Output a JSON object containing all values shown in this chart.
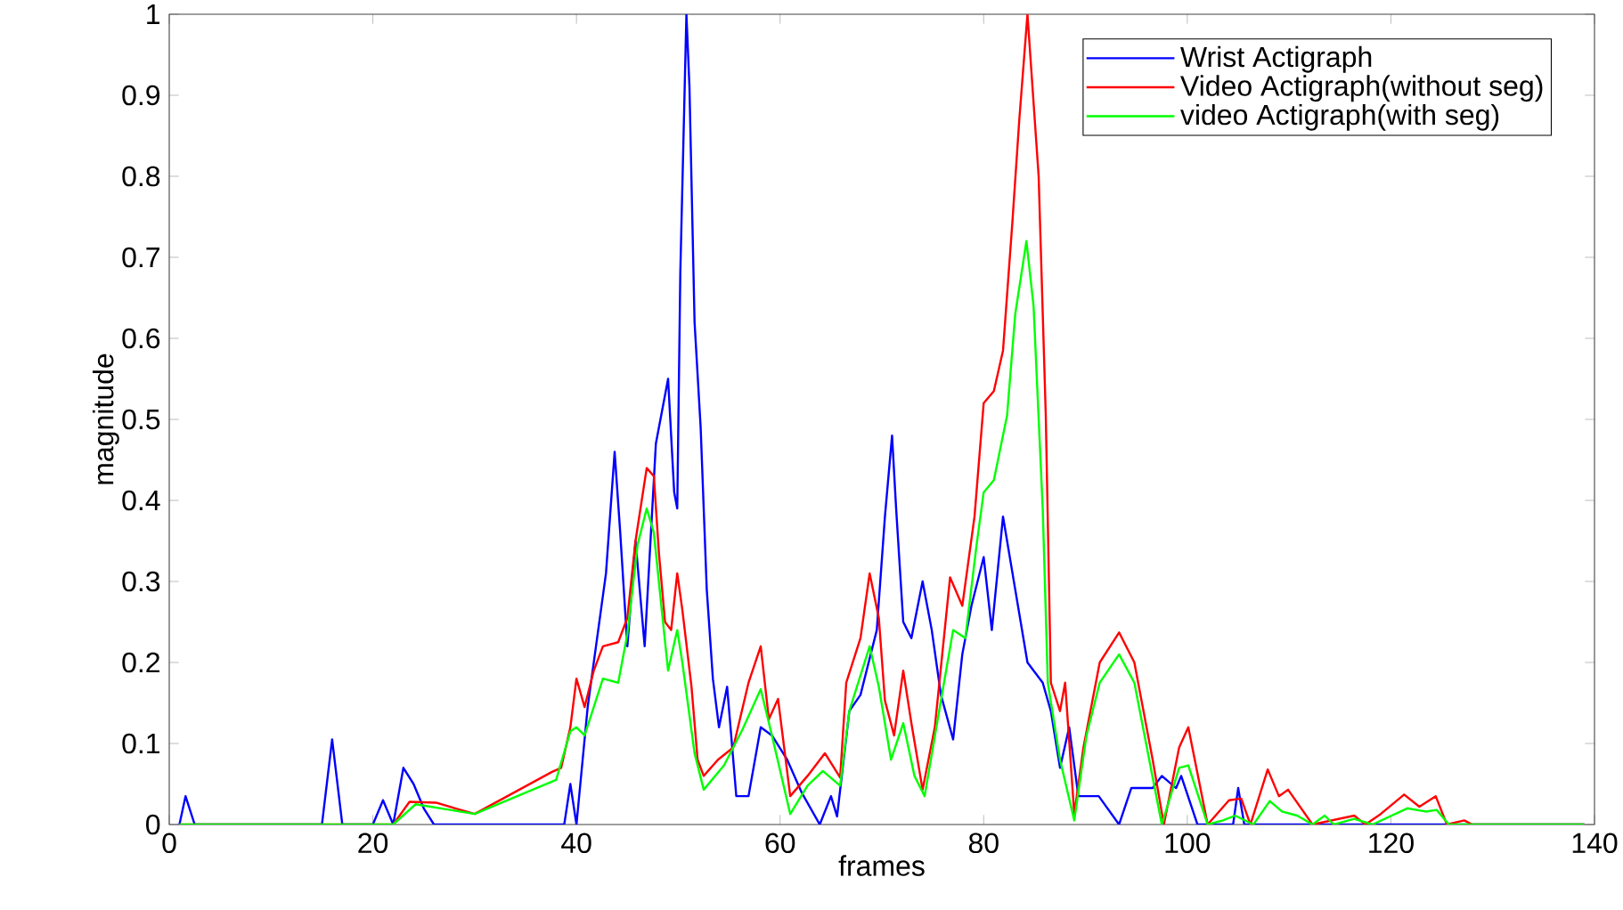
{
  "chart_data": {
    "type": "line",
    "xlabel": "frames",
    "ylabel": "magnitude",
    "xlim": [
      0,
      140
    ],
    "xticks": [
      0,
      20,
      40,
      60,
      80,
      100,
      120,
      140
    ],
    "ylim": [
      0,
      1
    ],
    "yticks": [
      0,
      0.1,
      0.2,
      0.3,
      0.4,
      0.5,
      0.6,
      0.7,
      0.8,
      0.9,
      1
    ],
    "legend": "top right",
    "marker": "none",
    "line_style": "solid",
    "series": [
      {
        "name": "Wrist Actigraph",
        "color": "#0000ff",
        "x": [
          1,
          1.6,
          2.5,
          15,
          16,
          17,
          20,
          21,
          22,
          23,
          24,
          25,
          26,
          38.8,
          39.4,
          40,
          41.1,
          42.9,
          43.75,
          44.3,
          45,
          45.8,
          46.7,
          47.8,
          49,
          49.6,
          49.9,
          50.2,
          50.8,
          51.1,
          51.6,
          52.2,
          52.8,
          53.4,
          54,
          54.8,
          55.7,
          56.9,
          58.1,
          59.2,
          60.7,
          62.1,
          63.9,
          65,
          65.6,
          66.8,
          67.9,
          69.5,
          70.3,
          71,
          71.4,
          72.1,
          72.9,
          74,
          74.9,
          75.8,
          77,
          77.9,
          78.8,
          80,
          80.8,
          81.9,
          83.1,
          84.3,
          85.8,
          86.6,
          87.5,
          88.4,
          89.3,
          91.3,
          93.3,
          94.5,
          96.6,
          97.5,
          98.9,
          99.4,
          101,
          104.5,
          105,
          105.6,
          139
        ],
        "values": [
          0,
          0.035,
          0,
          0,
          0.105,
          0,
          0,
          0.03,
          0,
          0.07,
          0.05,
          0.02,
          0,
          0,
          0.05,
          0,
          0.145,
          0.31,
          0.46,
          0.36,
          0.22,
          0.35,
          0.22,
          0.47,
          0.55,
          0.41,
          0.39,
          0.68,
          1,
          0.91,
          0.62,
          0.49,
          0.29,
          0.18,
          0.12,
          0.17,
          0.035,
          0.035,
          0.12,
          0.11,
          0.08,
          0.04,
          0,
          0.035,
          0.01,
          0.14,
          0.16,
          0.24,
          0.38,
          0.48,
          0.39,
          0.25,
          0.23,
          0.3,
          0.24,
          0.16,
          0.105,
          0.21,
          0.27,
          0.33,
          0.24,
          0.38,
          0.29,
          0.2,
          0.175,
          0.14,
          0.07,
          0.12,
          0.035,
          0.035,
          0,
          0.045,
          0.045,
          0.06,
          0.045,
          0.06,
          0,
          0,
          0.045,
          0,
          0
        ]
      },
      {
        "name": "Video Actigraph(without seg)",
        "color": "#ff0000",
        "x": [
          1,
          22,
          23.6,
          26.2,
          30,
          37.6,
          38.5,
          39.4,
          40,
          40.8,
          41.7,
          42.6,
          44.1,
          45,
          45.8,
          46.9,
          47.6,
          48.1,
          48.7,
          49.3,
          49.9,
          50.4,
          51.3,
          51.9,
          52.5,
          53.9,
          55.4,
          56.9,
          58.1,
          58.9,
          59.8,
          61,
          62.7,
          64.4,
          65.9,
          66.5,
          67.9,
          68.8,
          69.7,
          70.3,
          71.2,
          72.1,
          72.9,
          74,
          75.2,
          76.7,
          77.9,
          79.1,
          80,
          81,
          81.9,
          82.8,
          83.5,
          84.3,
          85.4,
          86.1,
          86.6,
          87.5,
          88,
          88.9,
          89.8,
          91.4,
          93.3,
          94.8,
          96.6,
          97.7,
          99.2,
          100.1,
          102,
          104.1,
          105.3,
          106.2,
          107.9,
          109,
          109.9,
          112.3,
          116.4,
          117.5,
          119,
          121.3,
          122.8,
          124.4,
          125.5,
          127.2,
          128,
          139
        ],
        "values": [
          0,
          0,
          0.028,
          0.027,
          0.013,
          0.065,
          0.07,
          0.12,
          0.18,
          0.145,
          0.19,
          0.22,
          0.225,
          0.255,
          0.35,
          0.44,
          0.43,
          0.335,
          0.25,
          0.24,
          0.31,
          0.265,
          0.17,
          0.08,
          0.06,
          0.08,
          0.095,
          0.175,
          0.22,
          0.13,
          0.155,
          0.035,
          0.06,
          0.088,
          0.058,
          0.175,
          0.23,
          0.31,
          0.255,
          0.153,
          0.11,
          0.19,
          0.125,
          0.043,
          0.12,
          0.305,
          0.27,
          0.38,
          0.52,
          0.535,
          0.585,
          0.74,
          0.87,
          1,
          0.8,
          0.505,
          0.175,
          0.14,
          0.175,
          0.013,
          0.095,
          0.2,
          0.237,
          0.2,
          0.08,
          0,
          0.095,
          0.12,
          0,
          0.03,
          0.032,
          0,
          0.068,
          0.035,
          0.043,
          0,
          0.011,
          0,
          0.013,
          0.037,
          0.022,
          0.035,
          0,
          0.005,
          0,
          0
        ]
      },
      {
        "name": "video Actigraph(with seg)",
        "color": "#00ff00",
        "x": [
          1,
          22,
          24.2,
          30,
          38,
          39.4,
          40,
          40.8,
          42.6,
          44.1,
          45,
          46,
          46.9,
          47.6,
          48.5,
          49,
          49.9,
          50.4,
          51.6,
          52.5,
          54.5,
          56.3,
          58.1,
          59.2,
          61,
          62.7,
          64.2,
          65.9,
          66.8,
          68.8,
          69.7,
          70.9,
          72.1,
          73.2,
          74.2,
          75.8,
          77,
          78.2,
          79.3,
          80,
          81,
          82.3,
          83.1,
          84.2,
          84.9,
          85.8,
          86.3,
          87.5,
          88.9,
          90.1,
          91.4,
          93.3,
          94.8,
          96.6,
          97.5,
          99.2,
          100.1,
          102,
          103.5,
          104.7,
          106.5,
          108.1,
          109.3,
          110.8,
          112.3,
          113.5,
          114.4,
          116.4,
          118.2,
          121.6,
          123.4,
          124.5,
          125.7,
          139
        ],
        "values": [
          0,
          0,
          0.025,
          0.013,
          0.055,
          0.115,
          0.12,
          0.11,
          0.18,
          0.175,
          0.235,
          0.345,
          0.39,
          0.36,
          0.25,
          0.19,
          0.24,
          0.2,
          0.088,
          0.043,
          0.073,
          0.117,
          0.167,
          0.11,
          0.013,
          0.048,
          0.066,
          0.048,
          0.14,
          0.22,
          0.17,
          0.08,
          0.125,
          0.06,
          0.035,
          0.153,
          0.24,
          0.23,
          0.345,
          0.41,
          0.425,
          0.505,
          0.63,
          0.72,
          0.64,
          0.39,
          0.175,
          0.08,
          0.005,
          0.11,
          0.175,
          0.21,
          0.175,
          0.058,
          0,
          0.07,
          0.073,
          0,
          0.005,
          0.011,
          0,
          0.029,
          0.016,
          0.011,
          0,
          0.011,
          0,
          0.007,
          0,
          0.02,
          0.016,
          0.018,
          0,
          0
        ]
      }
    ]
  }
}
